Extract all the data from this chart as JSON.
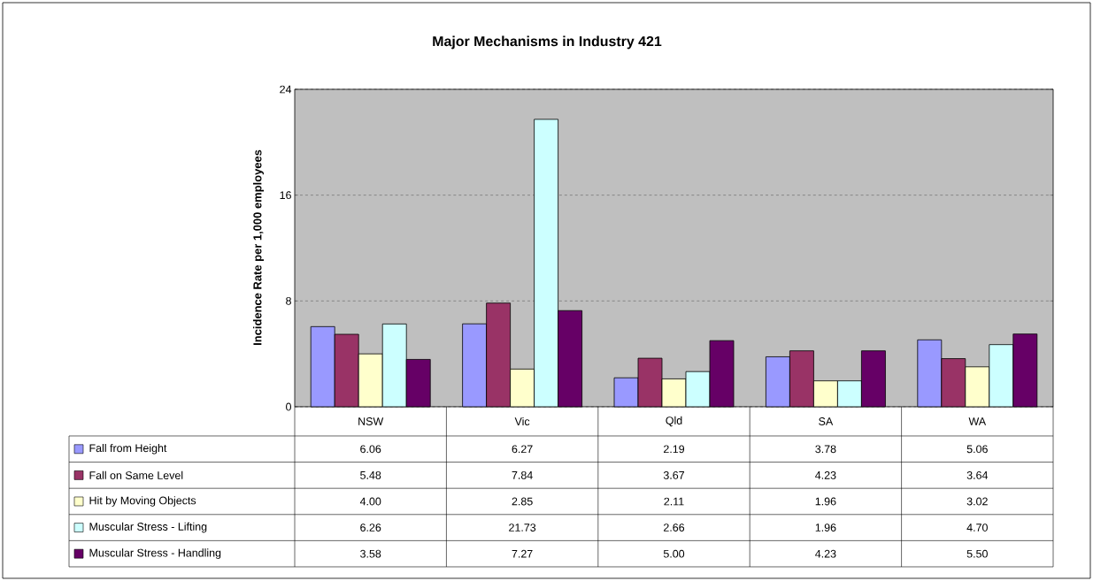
{
  "chart_data": {
    "type": "bar",
    "title": "Major Mechanisms in Industry 421",
    "ylabel": "Incidence Rate per 1,000 employees",
    "categories": [
      "NSW",
      "Vic",
      "Qld",
      "SA",
      "WA"
    ],
    "series": [
      {
        "name": "Fall from Height",
        "color": "#9999ff",
        "values": [
          6.06,
          6.27,
          2.19,
          3.78,
          5.06
        ],
        "value_labels": [
          "6.06",
          "6.27",
          "2.19",
          "3.78",
          "5.06"
        ]
      },
      {
        "name": "Fall on Same Level",
        "color": "#993366",
        "values": [
          5.48,
          7.84,
          3.67,
          4.23,
          3.64
        ],
        "value_labels": [
          "5.48",
          "7.84",
          "3.67",
          "4.23",
          "3.64"
        ]
      },
      {
        "name": "Hit by Moving Objects",
        "color": "#ffffcc",
        "values": [
          4.0,
          2.85,
          2.11,
          1.96,
          3.02
        ],
        "value_labels": [
          "4.00",
          "2.85",
          "2.11",
          "1.96",
          "3.02"
        ]
      },
      {
        "name": "Muscular Stress - Lifting",
        "color": "#ccffff",
        "values": [
          6.26,
          21.73,
          2.66,
          1.96,
          4.7
        ],
        "value_labels": [
          "6.26",
          "21.73",
          "2.66",
          "1.96",
          "4.70"
        ]
      },
      {
        "name": "Muscular Stress - Handling",
        "color": "#660066",
        "values": [
          3.58,
          7.27,
          5.0,
          4.23,
          5.5
        ],
        "value_labels": [
          "3.58",
          "7.27",
          "5.00",
          "4.23",
          "5.50"
        ]
      }
    ],
    "ylim": [
      0,
      24
    ],
    "yticks": [
      0,
      8,
      16,
      24
    ],
    "grid": "y",
    "legend": "bottom"
  }
}
